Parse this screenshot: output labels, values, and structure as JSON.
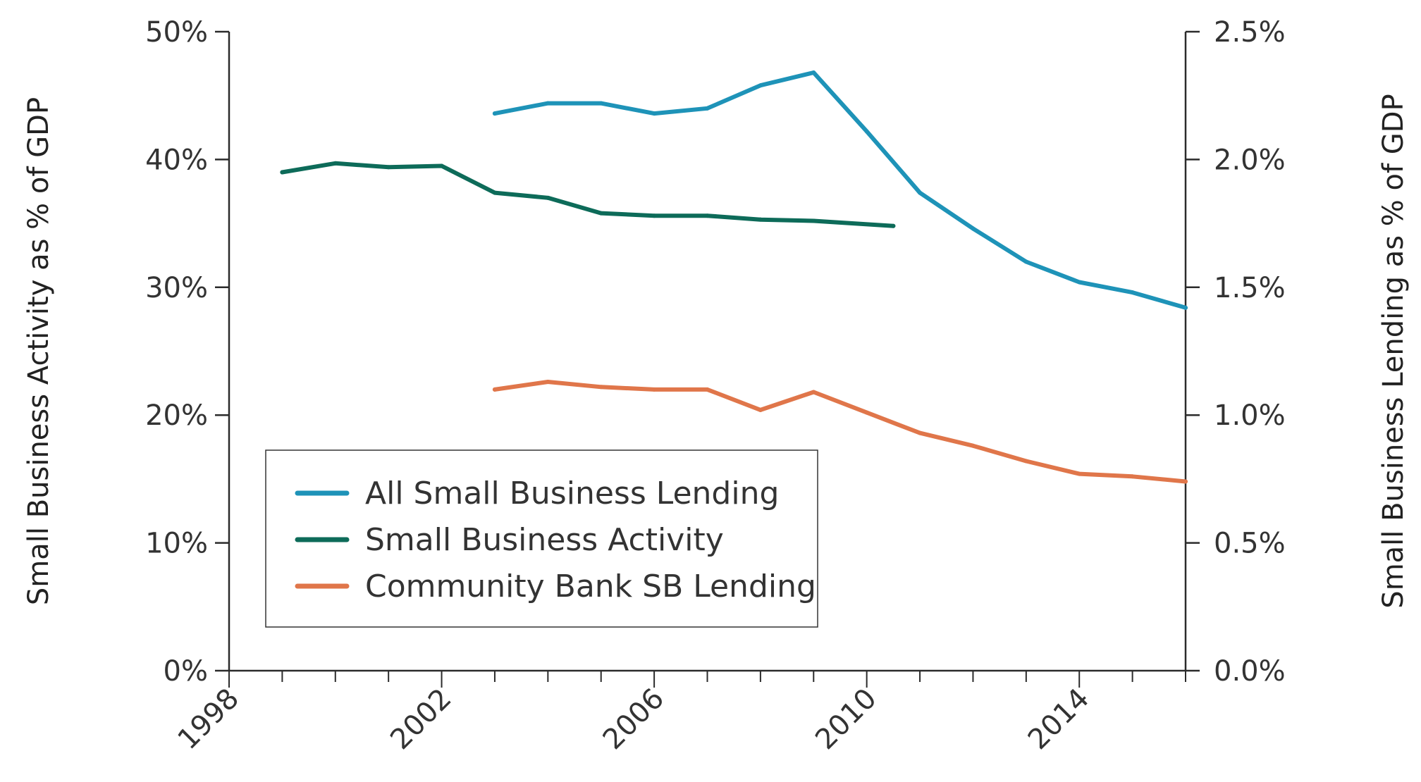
{
  "chart_data": {
    "type": "line",
    "title": "",
    "xlabel": "",
    "ylabel": "Small Business Activity as % of GDP",
    "y2label": "Small Business Lending as % of GDP",
    "xlim": [
      1998,
      2016
    ],
    "xticks_major": [
      "1998",
      "2002",
      "2006",
      "2010",
      "2014"
    ],
    "ylim": [
      0,
      50
    ],
    "yticks": [
      "0%",
      "10%",
      "20%",
      "30%",
      "40%",
      "50%"
    ],
    "y2lim": [
      0,
      2.5
    ],
    "y2ticks": [
      "0.0%",
      "0.5%",
      "1.0%",
      "1.5%",
      "2.0%",
      "2.5%"
    ],
    "grid": false,
    "legend_position": "bottom-left",
    "series": [
      {
        "name": "All Small Business Lending",
        "axis": "right",
        "color": "#1e93b8",
        "x": [
          2003.0,
          2004.0,
          2005.0,
          2006.0,
          2007.0,
          2008.0,
          2009.0,
          2010.0,
          2011.0,
          2012.0,
          2013.0,
          2014.0,
          2015.0,
          2016.0
        ],
        "values": [
          2.18,
          2.22,
          2.22,
          2.18,
          2.2,
          2.29,
          2.34,
          2.11,
          1.87,
          1.73,
          1.6,
          1.52,
          1.48,
          1.42
        ]
      },
      {
        "name": "Small Business Activity",
        "axis": "left",
        "color": "#0d6b59",
        "x": [
          1999.0,
          2000.0,
          2001.0,
          2002.0,
          2003.0,
          2004.0,
          2005.0,
          2006.0,
          2007.0,
          2008.0,
          2009.0,
          2010.5
        ],
        "values": [
          39.0,
          39.7,
          39.4,
          39.5,
          37.4,
          37.0,
          35.8,
          35.6,
          35.6,
          35.3,
          35.2,
          34.8
        ]
      },
      {
        "name": "Community Bank SB Lending",
        "axis": "right",
        "color": "#e0764a",
        "x": [
          2003.0,
          2004.0,
          2005.0,
          2006.0,
          2007.0,
          2008.0,
          2009.0,
          2010.0,
          2011.0,
          2012.0,
          2013.0,
          2014.0,
          2015.0,
          2016.0
        ],
        "values": [
          1.1,
          1.13,
          1.11,
          1.1,
          1.1,
          1.02,
          1.09,
          1.01,
          0.93,
          0.88,
          0.82,
          0.77,
          0.76,
          0.74
        ]
      }
    ]
  }
}
